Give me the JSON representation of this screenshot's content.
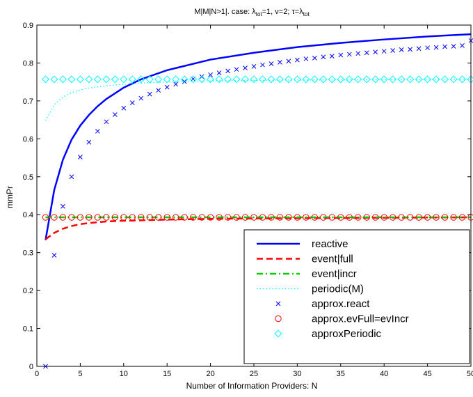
{
  "chart_data": {
    "type": "line",
    "title_parts": [
      {
        "t": "M|M|N>1|. case: λ",
        "s": ""
      },
      {
        "t": "tot",
        "s": "sub"
      },
      {
        "t": "=1, ν=2; τ=λ",
        "s": ""
      },
      {
        "t": "tot",
        "s": "sub"
      }
    ],
    "xlabel": "Number of Information Providers: N",
    "ylabel": "mmPr",
    "xlim": [
      0,
      50
    ],
    "ylim": [
      0,
      0.9
    ],
    "xticks": [
      0,
      5,
      10,
      15,
      20,
      25,
      30,
      35,
      40,
      45,
      50
    ],
    "yticks": [
      0,
      0.1,
      0.2,
      0.3,
      0.4,
      0.5,
      0.6,
      0.7,
      0.8,
      0.9
    ],
    "ytick_labels": [
      "0",
      "0.1",
      "0.2",
      "0.3",
      "0.4",
      "0.5",
      "0.6",
      "0.7",
      "0.8",
      "0.9"
    ],
    "grid": false,
    "legend_position": "bottom-right",
    "series": [
      {
        "name": "reactive",
        "style": "solid",
        "color": "#0000ff",
        "x": [
          1,
          2,
          3,
          4,
          5,
          6,
          7,
          8,
          10,
          12,
          15,
          20,
          25,
          30,
          35,
          40,
          45,
          50
        ],
        "y": [
          0.333,
          0.465,
          0.545,
          0.598,
          0.635,
          0.663,
          0.686,
          0.705,
          0.735,
          0.757,
          0.781,
          0.809,
          0.827,
          0.842,
          0.853,
          0.862,
          0.87,
          0.876
        ]
      },
      {
        "name": "event|full",
        "style": "dashed",
        "color": "#ff0000",
        "x": [
          1,
          2,
          3,
          4,
          5,
          6,
          8,
          10,
          15,
          20,
          30,
          40,
          50
        ],
        "y": [
          0.335,
          0.352,
          0.363,
          0.37,
          0.375,
          0.378,
          0.382,
          0.384,
          0.387,
          0.389,
          0.391,
          0.392,
          0.393
        ]
      },
      {
        "name": "event|incr",
        "style": "dashdot",
        "color": "#00cc00",
        "x": [
          1,
          50
        ],
        "y": [
          0.393,
          0.393
        ]
      },
      {
        "name": "periodic(M)",
        "style": "dotted",
        "color": "#00ffff",
        "x": [
          1,
          2,
          3,
          4,
          5,
          6,
          7,
          8,
          10,
          12,
          15,
          20,
          30,
          40,
          50
        ],
        "y": [
          0.648,
          0.69,
          0.71,
          0.722,
          0.729,
          0.734,
          0.737,
          0.74,
          0.744,
          0.747,
          0.75,
          0.753,
          0.755,
          0.756,
          0.757
        ]
      },
      {
        "name": "approx.react",
        "style": "x",
        "color": "#0000ff",
        "x": [
          1,
          2,
          3,
          4,
          5,
          6,
          7,
          8,
          9,
          10,
          11,
          12,
          13,
          14,
          15,
          16,
          17,
          18,
          19,
          20,
          21,
          22,
          23,
          24,
          25,
          26,
          27,
          28,
          29,
          30,
          31,
          32,
          33,
          34,
          35,
          36,
          37,
          38,
          39,
          40,
          41,
          42,
          43,
          44,
          45,
          46,
          47,
          48,
          49,
          50
        ],
        "y": [
          0.0,
          0.293,
          0.422,
          0.5,
          0.552,
          0.591,
          0.62,
          0.645,
          0.664,
          0.681,
          0.695,
          0.707,
          0.718,
          0.728,
          0.736,
          0.744,
          0.751,
          0.758,
          0.764,
          0.769,
          0.774,
          0.779,
          0.783,
          0.787,
          0.791,
          0.795,
          0.798,
          0.802,
          0.805,
          0.808,
          0.811,
          0.813,
          0.816,
          0.818,
          0.821,
          0.823,
          0.825,
          0.827,
          0.829,
          0.831,
          0.833,
          0.835,
          0.836,
          0.838,
          0.84,
          0.841,
          0.843,
          0.844,
          0.846,
          0.859
        ]
      },
      {
        "name": "approx.evFull=evIncr",
        "style": "circle",
        "color": "#ff0000",
        "x": [
          1,
          2,
          3,
          4,
          5,
          6,
          7,
          8,
          9,
          10,
          11,
          12,
          13,
          14,
          15,
          16,
          17,
          18,
          19,
          20,
          21,
          22,
          23,
          24,
          25,
          26,
          27,
          28,
          29,
          30,
          31,
          32,
          33,
          34,
          35,
          36,
          37,
          38,
          39,
          40,
          41,
          42,
          43,
          44,
          45,
          46,
          47,
          48,
          49,
          50
        ],
        "y": [
          0.393,
          0.393,
          0.393,
          0.393,
          0.393,
          0.393,
          0.393,
          0.393,
          0.393,
          0.393,
          0.393,
          0.393,
          0.393,
          0.393,
          0.393,
          0.393,
          0.393,
          0.393,
          0.393,
          0.393,
          0.393,
          0.393,
          0.393,
          0.393,
          0.393,
          0.393,
          0.393,
          0.393,
          0.393,
          0.393,
          0.393,
          0.393,
          0.393,
          0.393,
          0.393,
          0.393,
          0.393,
          0.393,
          0.393,
          0.393,
          0.393,
          0.393,
          0.393,
          0.393,
          0.393,
          0.393,
          0.393,
          0.393,
          0.393,
          0.393
        ]
      },
      {
        "name": "approxPeriodic",
        "style": "diamond",
        "color": "#00ffff",
        "x": [
          1,
          2,
          3,
          4,
          5,
          6,
          7,
          8,
          9,
          10,
          11,
          12,
          13,
          14,
          15,
          16,
          17,
          18,
          19,
          20,
          21,
          22,
          23,
          24,
          25,
          26,
          27,
          28,
          29,
          30,
          31,
          32,
          33,
          34,
          35,
          36,
          37,
          38,
          39,
          40,
          41,
          42,
          43,
          44,
          45,
          46,
          47,
          48,
          49,
          50
        ],
        "y": [
          0.757,
          0.757,
          0.757,
          0.757,
          0.757,
          0.757,
          0.757,
          0.757,
          0.757,
          0.757,
          0.757,
          0.757,
          0.757,
          0.757,
          0.757,
          0.757,
          0.757,
          0.757,
          0.757,
          0.757,
          0.757,
          0.757,
          0.757,
          0.757,
          0.757,
          0.757,
          0.757,
          0.757,
          0.757,
          0.757,
          0.757,
          0.757,
          0.757,
          0.757,
          0.757,
          0.757,
          0.757,
          0.757,
          0.757,
          0.757,
          0.757,
          0.757,
          0.757,
          0.757,
          0.757,
          0.757,
          0.757,
          0.757,
          0.757,
          0.757
        ]
      }
    ]
  }
}
